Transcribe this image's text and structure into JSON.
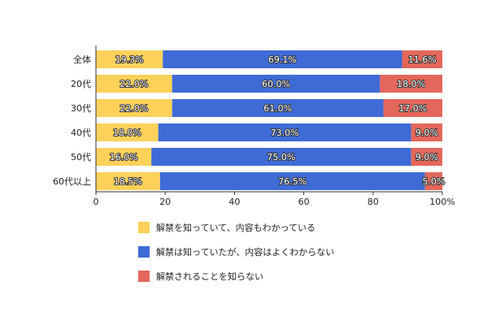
{
  "chart_data": {
    "type": "bar",
    "orientation": "horizontal",
    "stacked": true,
    "categories": [
      "全体",
      "20代",
      "30代",
      "40代",
      "50代",
      "60代以上"
    ],
    "series": [
      {
        "name": "解禁を知っていて、内容もわかっている",
        "color": "#fdd15a",
        "values": [
          19.3,
          22.0,
          22.0,
          18.0,
          16.0,
          18.5
        ],
        "labels": [
          "19.3%",
          "22.0%",
          "22.0%",
          "18.0%",
          "16.0%",
          "18.5%"
        ]
      },
      {
        "name": "解禁は知っていたが、内容はよくわからない",
        "color": "#3e6bd6",
        "values": [
          69.1,
          60.0,
          61.0,
          73.0,
          75.0,
          76.5
        ],
        "labels": [
          "69.1%",
          "60.0%",
          "61.0%",
          "73.0%",
          "75.0%",
          "76.5%"
        ]
      },
      {
        "name": "解禁されることを知らない",
        "color": "#e3675b",
        "values": [
          11.6,
          18.0,
          17.0,
          9.0,
          9.0,
          5.0
        ],
        "labels": [
          "11.6%",
          "18.0%",
          "17.0%",
          "9.0%",
          "9.0%",
          "5.0%"
        ]
      }
    ],
    "xlim": [
      0,
      100
    ],
    "xticks": [
      "0",
      "20",
      "40",
      "60",
      "80",
      "100%"
    ],
    "legend_position": "bottom",
    "grid": false
  }
}
